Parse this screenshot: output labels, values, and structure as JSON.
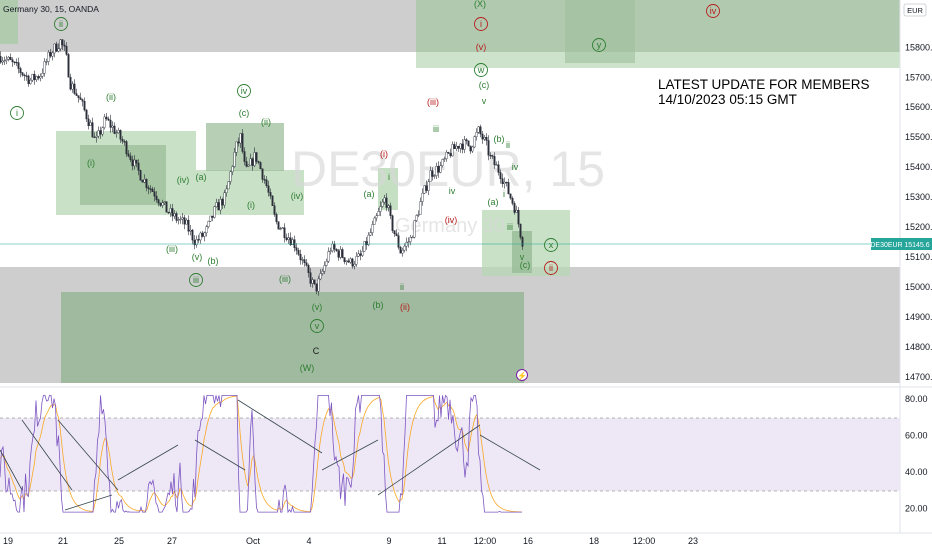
{
  "header": {
    "symbol_text": "Germany 30, 15, OANDA",
    "currency": "EUR",
    "watermark_main": "DE30EUR, 15",
    "watermark_sub": "Germany 30"
  },
  "annotation": {
    "line1": "LATEST UPDATE FOR MEMBERS",
    "line2": "14/10/2023 05:15 GMT"
  },
  "last_price_label": "DE30EUR",
  "last_price_value": "15145.6",
  "colors": {
    "up": "#26a69a",
    "down": "#ef5350",
    "candle": "#2a2e39",
    "zone_green": "#b4d2b4",
    "zone_gray": "#c8c8c8",
    "label_green": "#2e7d32",
    "label_red": "#b71c1c",
    "rsi_line": "#7e57c2",
    "rsi_ma": "#f9a825",
    "rsi_band": "#ede7f6",
    "price_line": "#26a69a"
  },
  "chart_data": [
    {
      "type": "candlestick",
      "title": "Germany 30, 15, OANDA",
      "y_axis": {
        "range": [
          14670,
          15900
        ],
        "ticks": [
          14700,
          14800,
          14900,
          15000,
          15100,
          15200,
          15300,
          15400,
          15500,
          15600,
          15700,
          15800
        ],
        "tick_labels": [
          "14700.0",
          "14800.0",
          "14900.0",
          "15000.0",
          "15100.0",
          "15200.0",
          "15300.0",
          "15400.0",
          "15500.0",
          "15600.0",
          "15700.0",
          "15800.0"
        ]
      },
      "x_axis": {
        "tick_labels": [
          "19",
          "21",
          "25",
          "27",
          "Oct",
          "4",
          "9",
          "11",
          "12:00",
          "16",
          "18",
          "12:00",
          "23"
        ]
      },
      "price_path": [
        [
          0,
          15770
        ],
        [
          10,
          15750
        ],
        [
          20,
          15720
        ],
        [
          30,
          15690
        ],
        [
          40,
          15710
        ],
        [
          50,
          15780
        ],
        [
          60,
          15820
        ],
        [
          65,
          15780
        ],
        [
          70,
          15680
        ],
        [
          80,
          15620
        ],
        [
          90,
          15540
        ],
        [
          95,
          15480
        ],
        [
          105,
          15560
        ],
        [
          115,
          15520
        ],
        [
          125,
          15470
        ],
        [
          135,
          15400
        ],
        [
          145,
          15350
        ],
        [
          155,
          15310
        ],
        [
          165,
          15260
        ],
        [
          175,
          15230
        ],
        [
          185,
          15210
        ],
        [
          195,
          15150
        ],
        [
          205,
          15180
        ],
        [
          215,
          15260
        ],
        [
          225,
          15300
        ],
        [
          235,
          15460
        ],
        [
          240,
          15500
        ],
        [
          245,
          15380
        ],
        [
          255,
          15440
        ],
        [
          265,
          15350
        ],
        [
          275,
          15220
        ],
        [
          285,
          15180
        ],
        [
          295,
          15140
        ],
        [
          305,
          15060
        ],
        [
          315,
          14990
        ],
        [
          320,
          15030
        ],
        [
          330,
          15130
        ],
        [
          340,
          15110
        ],
        [
          350,
          15080
        ],
        [
          360,
          15100
        ],
        [
          370,
          15180
        ],
        [
          380,
          15260
        ],
        [
          385,
          15300
        ],
        [
          390,
          15220
        ],
        [
          400,
          15120
        ],
        [
          410,
          15160
        ],
        [
          420,
          15280
        ],
        [
          430,
          15380
        ],
        [
          440,
          15400
        ],
        [
          450,
          15450
        ],
        [
          460,
          15480
        ],
        [
          470,
          15470
        ],
        [
          478,
          15520
        ],
        [
          485,
          15480
        ],
        [
          490,
          15430
        ],
        [
          500,
          15380
        ],
        [
          510,
          15300
        ],
        [
          515,
          15260
        ],
        [
          520,
          15180
        ],
        [
          523,
          15140
        ]
      ],
      "last_value": 15145.6,
      "wave_labels": [
        {
          "text": "i",
          "circled": true,
          "color": "green"
        },
        {
          "text": "ii",
          "circled": true,
          "color": "green"
        },
        {
          "text": "(i)",
          "circled": false,
          "color": "green"
        },
        {
          "text": "(ii)",
          "circled": false,
          "color": "green"
        },
        {
          "text": "(iii)",
          "circled": false,
          "color": "green"
        },
        {
          "text": "(iv)",
          "circled": false,
          "color": "green"
        },
        {
          "text": "(a)",
          "circled": false,
          "color": "green"
        },
        {
          "text": "(v)",
          "circled": false,
          "color": "green"
        },
        {
          "text": "(b)",
          "circled": false,
          "color": "green"
        },
        {
          "text": "iii",
          "circled": true,
          "color": "green"
        },
        {
          "text": "iv",
          "circled": true,
          "color": "green"
        },
        {
          "text": "(c)",
          "circled": false,
          "color": "green"
        },
        {
          "text": "(ii)",
          "circled": false,
          "color": "green"
        },
        {
          "text": "(i)",
          "circled": false,
          "color": "green"
        },
        {
          "text": "(iv)",
          "circled": false,
          "color": "green"
        },
        {
          "text": "(iii)",
          "circled": false,
          "color": "green"
        },
        {
          "text": "(v)",
          "circled": false,
          "color": "green"
        },
        {
          "text": "v",
          "circled": true,
          "color": "green"
        },
        {
          "text": "C",
          "circled": false,
          "color": "dark"
        },
        {
          "text": "(W)",
          "circled": false,
          "color": "green"
        },
        {
          "text": "(a)",
          "circled": false,
          "color": "green"
        },
        {
          "text": "i",
          "circled": false,
          "color": "green"
        },
        {
          "text": "(i)",
          "circled": false,
          "color": "red"
        },
        {
          "text": "(b)",
          "circled": false,
          "color": "green"
        },
        {
          "text": "ii",
          "circled": false,
          "color": "green"
        },
        {
          "text": "(ii)",
          "circled": false,
          "color": "red"
        },
        {
          "text": "(iii)",
          "circled": false,
          "color": "red"
        },
        {
          "text": "iii",
          "circled": false,
          "color": "green"
        },
        {
          "text": "iv",
          "circled": false,
          "color": "green"
        },
        {
          "text": "(iv)",
          "circled": false,
          "color": "red"
        },
        {
          "text": "(X)",
          "circled": false,
          "color": "green"
        },
        {
          "text": "i",
          "circled": true,
          "color": "red"
        },
        {
          "text": "(v)",
          "circled": false,
          "color": "red"
        },
        {
          "text": "w",
          "circled": true,
          "color": "green"
        },
        {
          "text": "(c)",
          "circled": false,
          "color": "green"
        },
        {
          "text": "v",
          "circled": false,
          "color": "green"
        },
        {
          "text": "(b)",
          "circled": false,
          "color": "green"
        },
        {
          "text": "ii",
          "circled": false,
          "color": "green"
        },
        {
          "text": "iv",
          "circled": false,
          "color": "green"
        },
        {
          "text": "i",
          "circled": false,
          "color": "green"
        },
        {
          "text": "(a)",
          "circled": false,
          "color": "green"
        },
        {
          "text": "iii",
          "circled": false,
          "color": "green"
        },
        {
          "text": "v",
          "circled": false,
          "color": "green"
        },
        {
          "text": "(c)",
          "circled": false,
          "color": "green"
        },
        {
          "text": "x",
          "circled": true,
          "color": "green"
        },
        {
          "text": "ii",
          "circled": true,
          "color": "red"
        },
        {
          "text": "y",
          "circled": true,
          "color": "green"
        },
        {
          "text": "iv",
          "circled": true,
          "color": "red"
        }
      ]
    },
    {
      "type": "line",
      "title": "",
      "y_axis": {
        "range": [
          15,
          85
        ],
        "ticks": [
          20,
          40,
          60,
          80
        ],
        "tick_labels": [
          "20.00",
          "40.00",
          "60.00",
          "80.00"
        ],
        "band": [
          30,
          70
        ]
      }
    }
  ]
}
